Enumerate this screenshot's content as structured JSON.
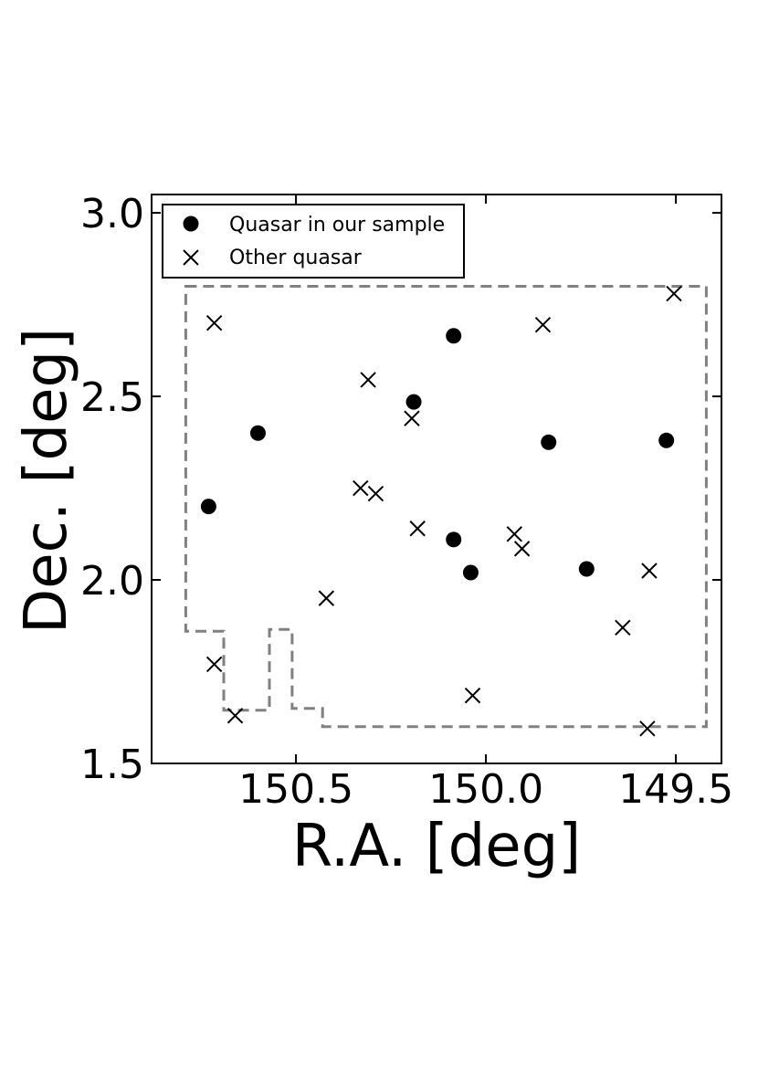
{
  "chart_data": {
    "type": "scatter",
    "xlabel": "R.A. [deg]",
    "ylabel": "Dec. [deg]",
    "x_axis_inverted": true,
    "xlim": [
      150.88,
      149.38
    ],
    "ylim": [
      1.5,
      3.05
    ],
    "xticks": [
      {
        "value": 150.5,
        "label": "150.5"
      },
      {
        "value": 150.0,
        "label": "150.0"
      },
      {
        "value": 149.5,
        "label": "149.5"
      }
    ],
    "yticks": [
      {
        "value": 1.5,
        "label": "1.5"
      },
      {
        "value": 2.0,
        "label": "2.0"
      },
      {
        "value": 2.5,
        "label": "2.5"
      },
      {
        "value": 3.0,
        "label": "3.0"
      }
    ],
    "grid": false,
    "legend": {
      "placement": "top-left"
    },
    "series": [
      {
        "name": "Quasar in our sample",
        "marker": "filled-circle",
        "color": "#000000",
        "points": [
          {
            "x": 150.73,
            "y": 2.2
          },
          {
            "x": 150.6,
            "y": 2.4
          },
          {
            "x": 150.19,
            "y": 2.485
          },
          {
            "x": 150.085,
            "y": 2.665
          },
          {
            "x": 150.085,
            "y": 2.11
          },
          {
            "x": 150.04,
            "y": 2.02
          },
          {
            "x": 149.835,
            "y": 2.375
          },
          {
            "x": 149.735,
            "y": 2.03
          },
          {
            "x": 149.525,
            "y": 2.38
          }
        ]
      },
      {
        "name": "Other quasar",
        "marker": "x",
        "color": "#000000",
        "points": [
          {
            "x": 150.715,
            "y": 2.7
          },
          {
            "x": 150.715,
            "y": 1.77
          },
          {
            "x": 150.66,
            "y": 1.63
          },
          {
            "x": 150.42,
            "y": 1.95
          },
          {
            "x": 150.33,
            "y": 2.25
          },
          {
            "x": 150.31,
            "y": 2.545
          },
          {
            "x": 150.29,
            "y": 2.235
          },
          {
            "x": 150.195,
            "y": 2.44
          },
          {
            "x": 150.18,
            "y": 2.14
          },
          {
            "x": 150.035,
            "y": 1.685
          },
          {
            "x": 149.925,
            "y": 2.125
          },
          {
            "x": 149.905,
            "y": 2.085
          },
          {
            "x": 149.85,
            "y": 2.695
          },
          {
            "x": 149.64,
            "y": 1.87
          },
          {
            "x": 149.57,
            "y": 2.025
          },
          {
            "x": 149.575,
            "y": 1.595
          },
          {
            "x": 149.505,
            "y": 2.78
          }
        ]
      }
    ],
    "survey_footprint": {
      "style": "dashed",
      "color": "#808080",
      "vertices": [
        [
          150.79,
          2.8
        ],
        [
          149.42,
          2.8
        ],
        [
          149.42,
          1.6
        ],
        [
          150.43,
          1.6
        ],
        [
          150.43,
          1.65
        ],
        [
          150.51,
          1.65
        ],
        [
          150.51,
          1.865
        ],
        [
          150.57,
          1.865
        ],
        [
          150.57,
          1.645
        ],
        [
          150.69,
          1.645
        ],
        [
          150.69,
          1.86
        ],
        [
          150.79,
          1.86
        ]
      ]
    }
  }
}
